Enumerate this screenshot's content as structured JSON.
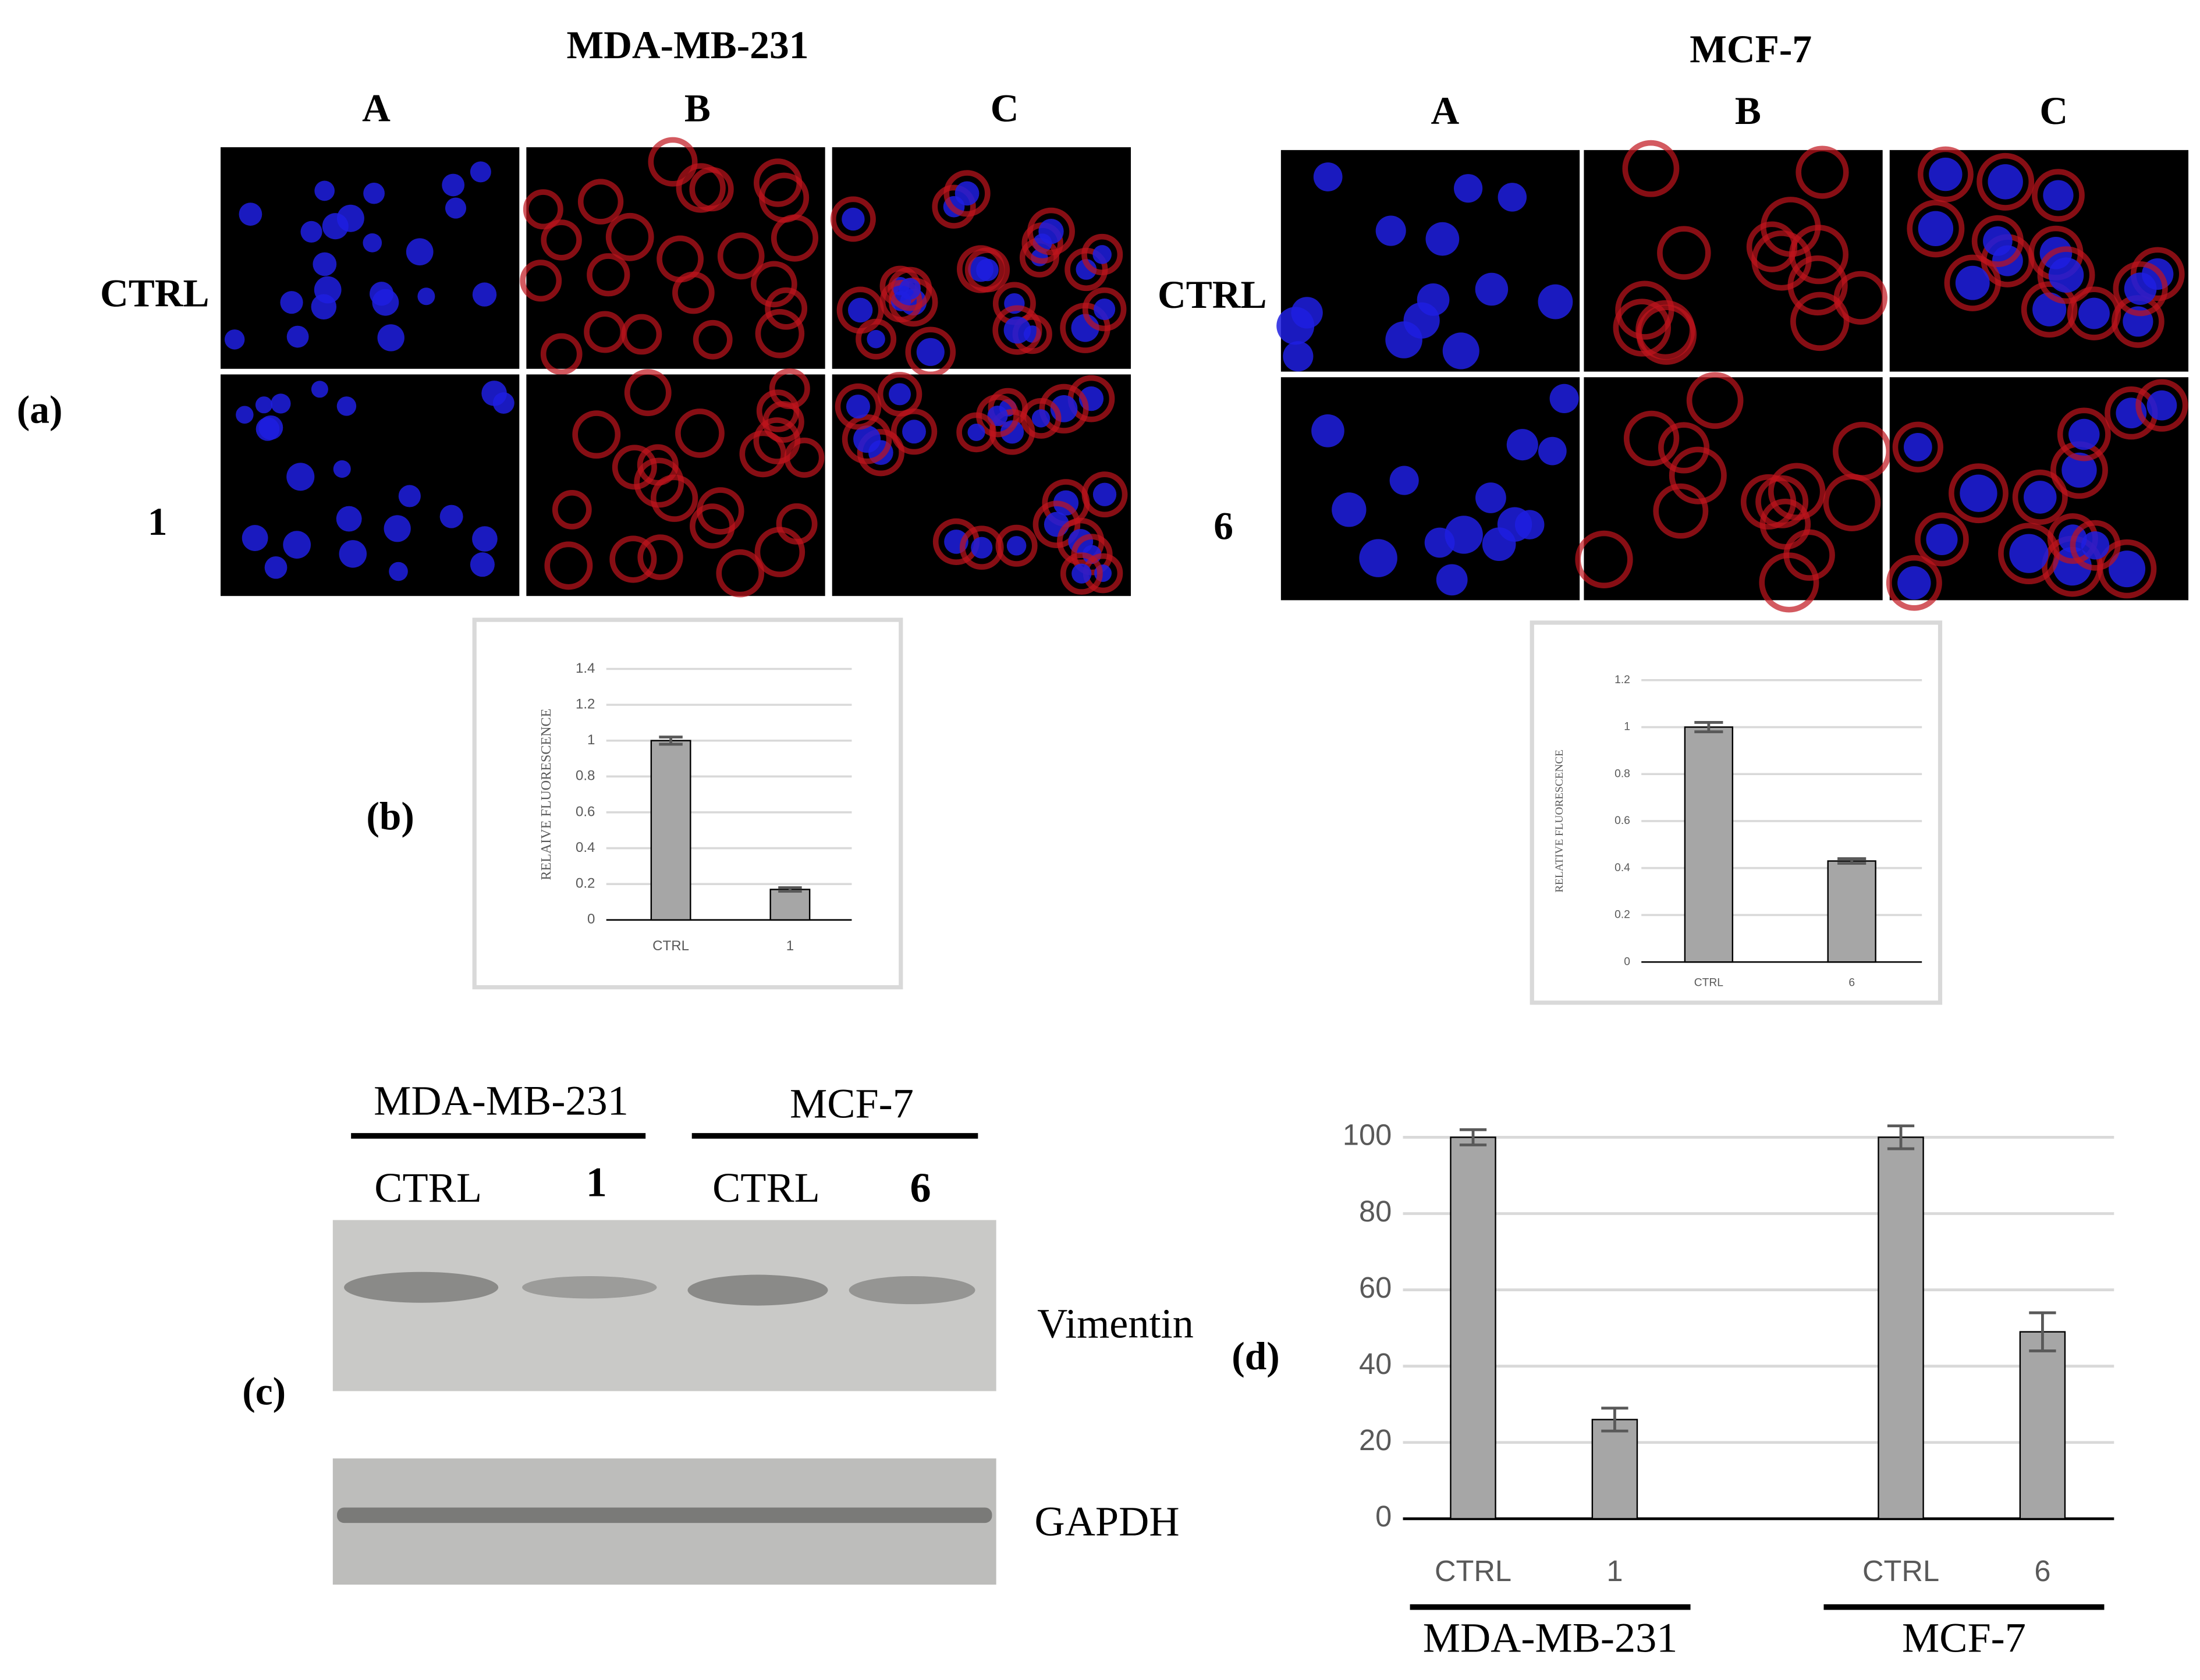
{
  "figure": {
    "panels": [
      "(a)",
      "(b)",
      "(c)",
      "(d)"
    ],
    "microscopy": {
      "cell_lines": [
        "MDA-MB-231",
        "MCF-7"
      ],
      "columns": [
        "A",
        "B",
        "C"
      ],
      "rows": [
        [
          "CTRL",
          "1"
        ],
        [
          "CTRL",
          "6"
        ]
      ]
    },
    "blot": {
      "groups": [
        "MDA-MB-231",
        "MCF-7"
      ],
      "lanes": [
        "CTRL",
        "1",
        "CTRL",
        "6"
      ],
      "proteins": [
        "Vimentin",
        "GAPDH"
      ]
    }
  },
  "chart_data": [
    {
      "type": "bar",
      "y_label": "RELAIVE FLUORESCENCE",
      "categories": [
        "CTRL",
        "1"
      ],
      "values": [
        1.0,
        0.17
      ],
      "errors": [
        0.02,
        0.01
      ],
      "color": "#a6a6a6",
      "ylim": [
        0,
        1.4
      ],
      "yticks": [
        0,
        0.2,
        0.4,
        0.6,
        0.8,
        1,
        1.2,
        1.4
      ],
      "grid": true
    },
    {
      "type": "bar",
      "y_label": "RELATIVE FLUORESCENCE",
      "categories": [
        "CTRL",
        "6"
      ],
      "values": [
        1.0,
        0.43
      ],
      "errors": [
        0.02,
        0.01
      ],
      "color": "#a6a6a6",
      "ylim": [
        0,
        1.2
      ],
      "yticks": [
        0,
        0.2,
        0.4,
        0.6,
        0.8,
        1,
        1.2
      ],
      "grid": true
    },
    {
      "type": "bar",
      "categories": [
        "CTRL",
        "1",
        "CTRL",
        "6"
      ],
      "groups": [
        "MDA-MB-231",
        "MCF-7"
      ],
      "values": [
        100,
        26,
        100,
        49
      ],
      "errors": [
        2,
        3,
        3,
        5
      ],
      "color": "#a6a6a6",
      "ylim": [
        0,
        100
      ],
      "yticks": [
        0,
        20,
        40,
        60,
        80,
        100
      ],
      "grid": true
    }
  ]
}
